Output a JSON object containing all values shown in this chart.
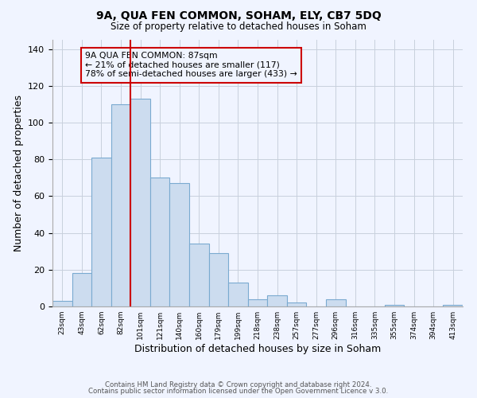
{
  "title": "9A, QUA FEN COMMON, SOHAM, ELY, CB7 5DQ",
  "subtitle": "Size of property relative to detached houses in Soham",
  "xlabel": "Distribution of detached houses by size in Soham",
  "ylabel": "Number of detached properties",
  "bar_color": "#ccdcef",
  "bar_edge_color": "#7aaad0",
  "bin_labels": [
    "23sqm",
    "43sqm",
    "62sqm",
    "82sqm",
    "101sqm",
    "121sqm",
    "140sqm",
    "160sqm",
    "179sqm",
    "199sqm",
    "218sqm",
    "238sqm",
    "257sqm",
    "277sqm",
    "296sqm",
    "316sqm",
    "335sqm",
    "355sqm",
    "374sqm",
    "394sqm",
    "413sqm"
  ],
  "bar_values": [
    3,
    18,
    81,
    110,
    113,
    70,
    67,
    34,
    29,
    13,
    4,
    6,
    2,
    0,
    4,
    0,
    0,
    1,
    0,
    0,
    1
  ],
  "ylim": [
    0,
    145
  ],
  "yticks": [
    0,
    20,
    40,
    60,
    80,
    100,
    120,
    140
  ],
  "annotation_title": "9A QUA FEN COMMON: 87sqm",
  "annotation_line1": "← 21% of detached houses are smaller (117)",
  "annotation_line2": "78% of semi-detached houses are larger (433) →",
  "footer_line1": "Contains HM Land Registry data © Crown copyright and database right 2024.",
  "footer_line2": "Contains public sector information licensed under the Open Government Licence v 3.0.",
  "background_color": "#f0f4ff",
  "grid_color": "#c8d0dc"
}
